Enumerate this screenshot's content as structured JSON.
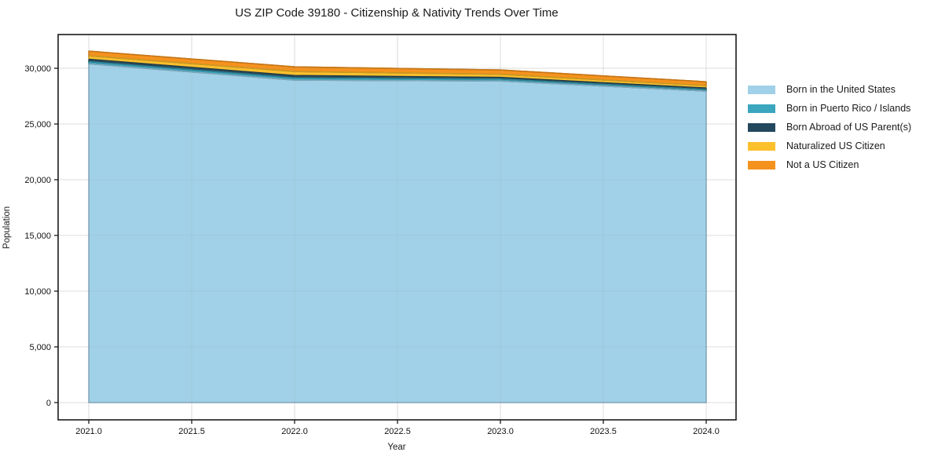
{
  "chart": {
    "title": "US ZIP Code 39180 - Citizenship & Nativity Trends Over Time"
  },
  "chart_data": {
    "type": "area",
    "stacked": true,
    "title": "US ZIP Code 39180 - Citizenship & Nativity Trends Over Time",
    "xlabel": "Year",
    "ylabel": "Population",
    "x": [
      2021,
      2022,
      2023,
      2024
    ],
    "x_ticks": [
      2021.0,
      2021.5,
      2022.0,
      2022.5,
      2023.0,
      2023.5,
      2024.0
    ],
    "x_tick_labels": [
      "2021.0",
      "2021.5",
      "2022.0",
      "2022.5",
      "2023.0",
      "2023.5",
      "2024.0"
    ],
    "y_ticks": [
      0,
      5000,
      10000,
      15000,
      20000,
      25000,
      30000
    ],
    "y_tick_labels": [
      "0",
      "5,000",
      "10,000",
      "15,000",
      "20,000",
      "25,000",
      "30,000"
    ],
    "xlim": [
      2020.851,
      2024.145
    ],
    "ylim": [
      -1550,
      33030
    ],
    "grid": true,
    "legend_position": "right",
    "series": [
      {
        "name": "Born in the United States",
        "color": "#a1d1e8",
        "values": [
          30400,
          28940,
          28860,
          27950
        ]
      },
      {
        "name": "Born in Puerto Rico / Islands",
        "color": "#3ba6be",
        "values": [
          200,
          200,
          170,
          140
        ]
      },
      {
        "name": "Born Abroad of US Parent(s)",
        "color": "#23485e",
        "values": [
          210,
          210,
          150,
          140
        ]
      },
      {
        "name": "Naturalized US Citizen",
        "color": "#fcc02d",
        "values": [
          310,
          360,
          280,
          210
        ]
      },
      {
        "name": "Not a US Citizen",
        "color": "#f5921e",
        "values": [
          420,
          420,
          390,
          350
        ]
      }
    ],
    "totals": [
      31540,
      30130,
      29850,
      28790
    ]
  }
}
